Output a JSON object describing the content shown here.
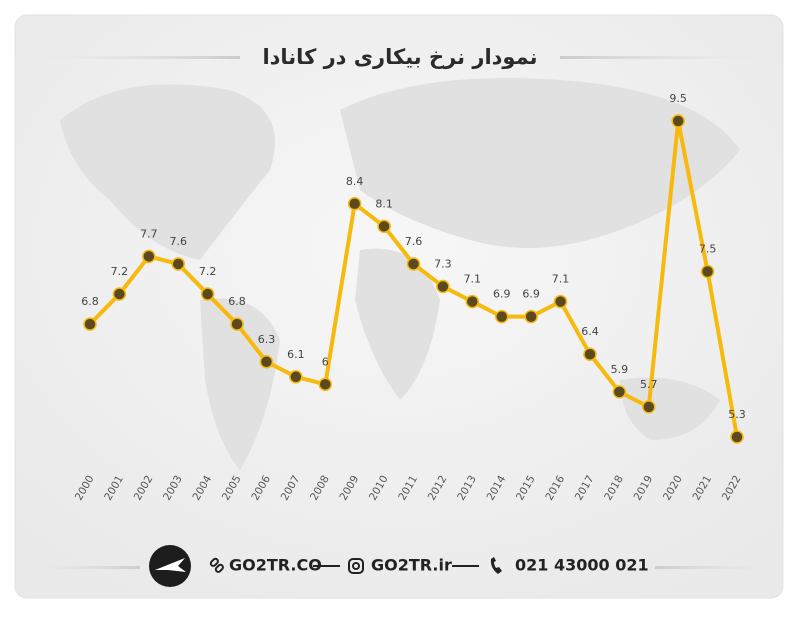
{
  "chart_data": {
    "type": "line",
    "title": "نمودار نرخ بیکاری در کانادا",
    "categories": [
      "2000",
      "2001",
      "2002",
      "2003",
      "2004",
      "2005",
      "2006",
      "2007",
      "2008",
      "2009",
      "2010",
      "2011",
      "2012",
      "2013",
      "2014",
      "2015",
      "2016",
      "2017",
      "2018",
      "2019",
      "2020",
      "2021",
      "2022"
    ],
    "values": [
      6.8,
      7.2,
      7.7,
      7.6,
      7.2,
      6.8,
      6.3,
      6.1,
      6,
      8.4,
      8.1,
      7.6,
      7.3,
      7.1,
      6.9,
      6.9,
      7.1,
      6.4,
      5.9,
      5.7,
      9.5,
      7.5,
      5.3
    ],
    "color": "#f6b90c",
    "marker_color": "#5b4a1f"
  },
  "footer": {
    "website": "GO2TR.CO",
    "instagram": "GO2TR.ir",
    "phone": "021 43000 021"
  }
}
